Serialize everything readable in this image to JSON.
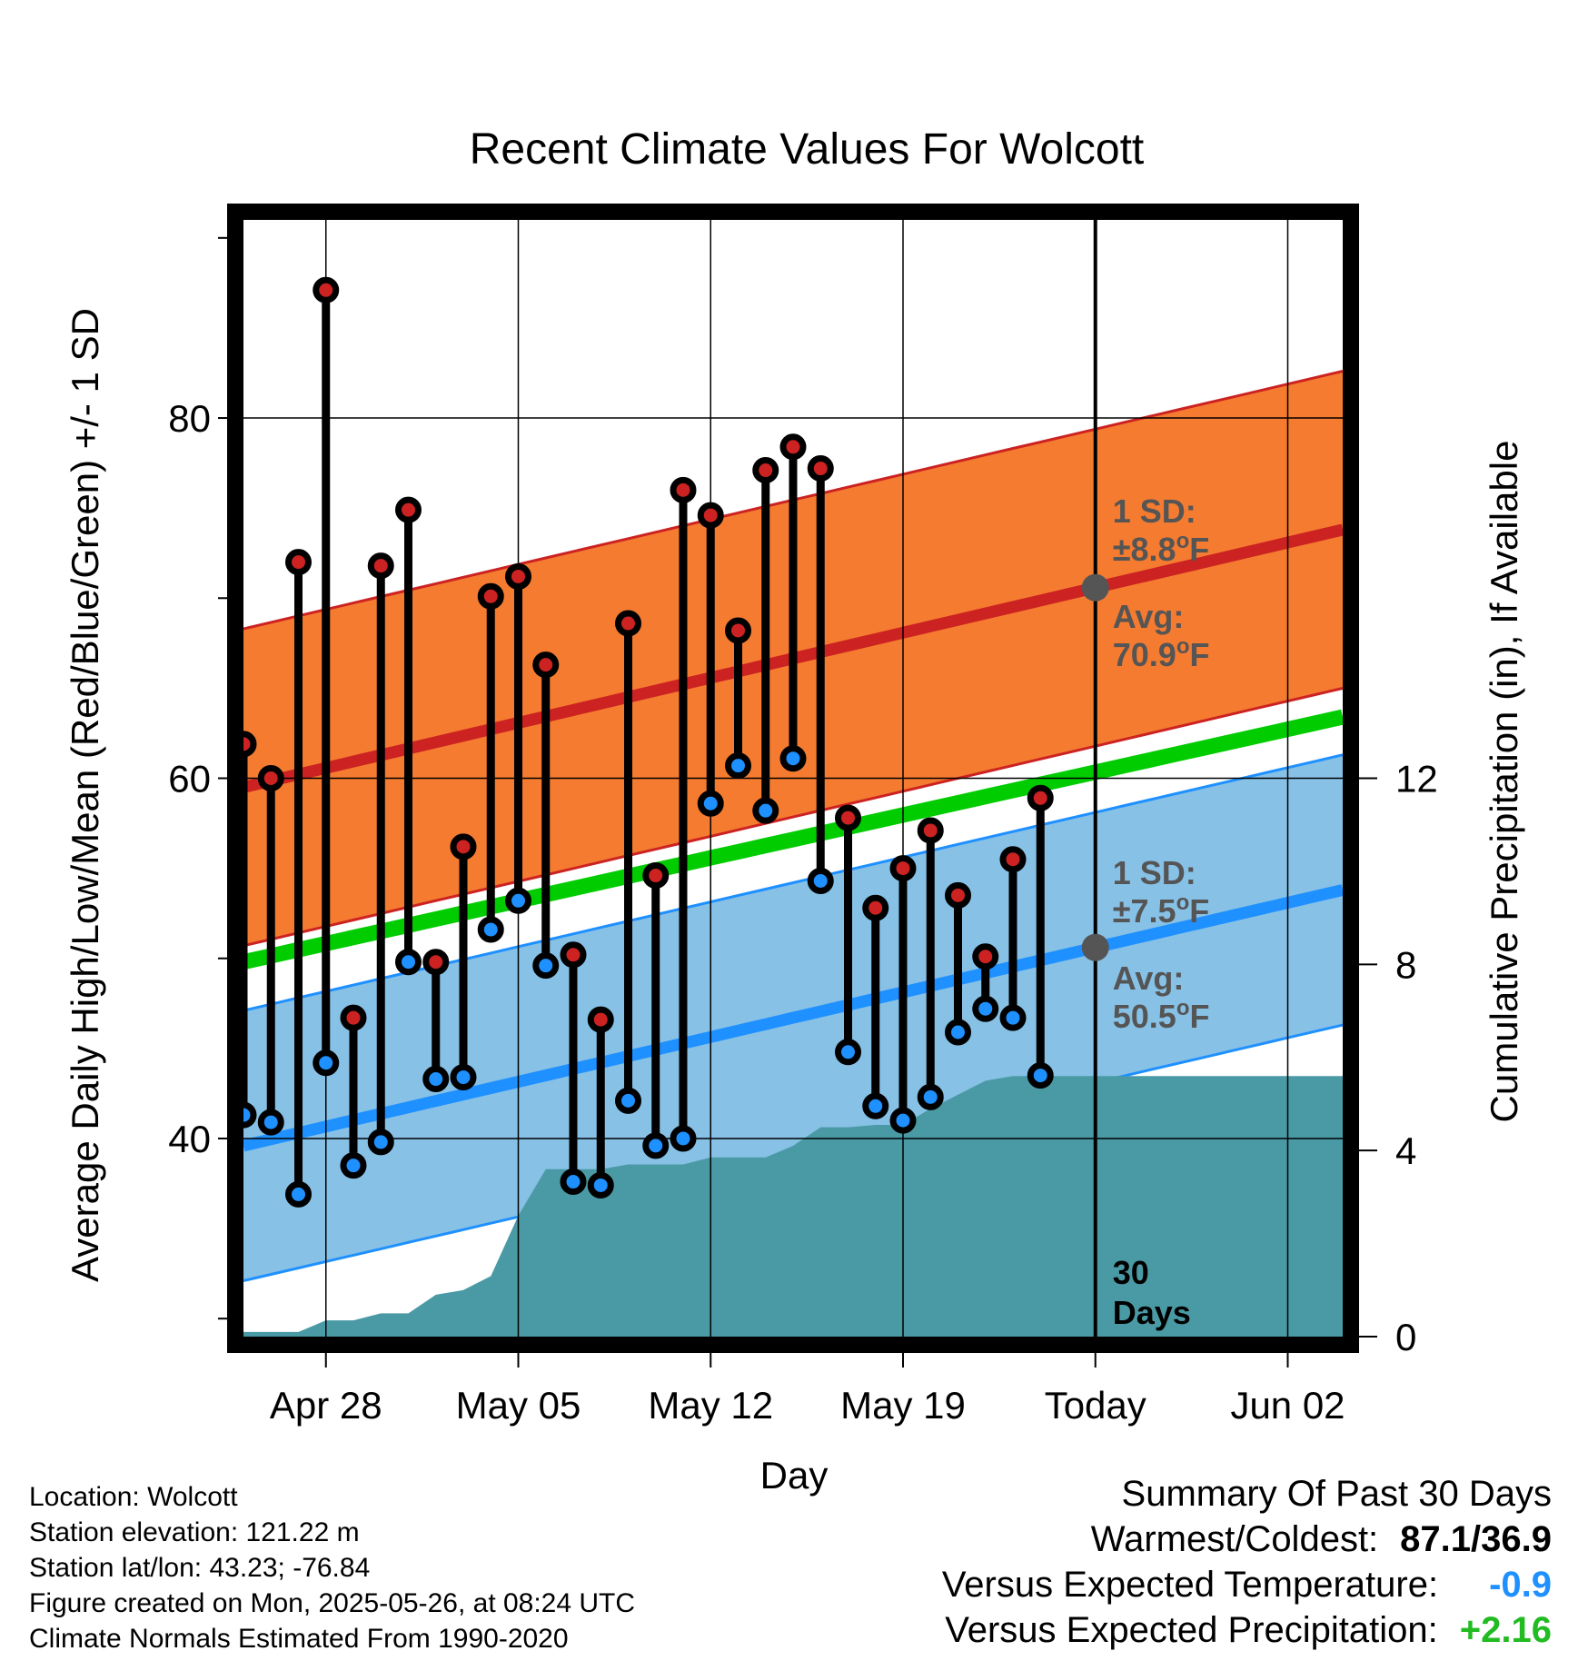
{
  "chart_data": {
    "type": "line",
    "title": "Recent Climate Values For Wolcott",
    "xlabel": "Day",
    "ylabel": "Average Daily High/Low/Mean (Red/Blue/Green) +/- 1 SD",
    "y2label": "Cumulative Precipitation (in), If Available",
    "x_start": "2025-04-25",
    "today": "2025-05-26",
    "x_end": "2025-06-04",
    "x_ticks": [
      {
        "date": "2025-04-28",
        "label": "Apr 28"
      },
      {
        "date": "2025-05-05",
        "label": "May 05"
      },
      {
        "date": "2025-05-12",
        "label": "May 12"
      },
      {
        "date": "2025-05-19",
        "label": "May 19"
      },
      {
        "date": "2025-05-26",
        "label": "Today"
      },
      {
        "date": "2025-06-02",
        "label": "Jun 02"
      }
    ],
    "ylim": [
      29,
      91
    ],
    "y_ticks": [
      40,
      60,
      80
    ],
    "y2lim": [
      0,
      24
    ],
    "y2_ticks": [
      0,
      4,
      8,
      12
    ],
    "grid": true,
    "normals": {
      "high_avg": {
        "start": 59.5,
        "end": 73.8
      },
      "high_sd": 8.8,
      "mean_avg": {
        "start": 49.8,
        "end": 63.4
      },
      "low_avg": {
        "start": 39.6,
        "end": 53.8
      },
      "low_sd": 7.5
    },
    "series": [
      {
        "name": "High",
        "color": "#cc2222",
        "dates": [
          "2025-04-25",
          "2025-04-26",
          "2025-04-27",
          "2025-04-28",
          "2025-04-29",
          "2025-04-30",
          "2025-05-01",
          "2025-05-02",
          "2025-05-03",
          "2025-05-04",
          "2025-05-05",
          "2025-05-06",
          "2025-05-07",
          "2025-05-08",
          "2025-05-09",
          "2025-05-10",
          "2025-05-11",
          "2025-05-12",
          "2025-05-13",
          "2025-05-14",
          "2025-05-15",
          "2025-05-16",
          "2025-05-17",
          "2025-05-18",
          "2025-05-19",
          "2025-05-20",
          "2025-05-21",
          "2025-05-22",
          "2025-05-23",
          "2025-05-24",
          "2025-05-25"
        ],
        "values": [
          61.9,
          60.0,
          72.0,
          87.1,
          46.7,
          71.8,
          74.9,
          49.8,
          56.2,
          70.1,
          71.2,
          66.3,
          50.2,
          46.6,
          68.6,
          54.6,
          76.0,
          74.6,
          68.2,
          77.1,
          78.4,
          77.2,
          57.8,
          52.8,
          55.0,
          57.1,
          53.5,
          50.1,
          55.5,
          58.9,
          null
        ]
      },
      {
        "name": "Low",
        "color": "#1e90ff",
        "dates": [
          "2025-04-25",
          "2025-04-26",
          "2025-04-27",
          "2025-04-28",
          "2025-04-29",
          "2025-04-30",
          "2025-05-01",
          "2025-05-02",
          "2025-05-03",
          "2025-05-04",
          "2025-05-05",
          "2025-05-06",
          "2025-05-07",
          "2025-05-08",
          "2025-05-09",
          "2025-05-10",
          "2025-05-11",
          "2025-05-12",
          "2025-05-13",
          "2025-05-14",
          "2025-05-15",
          "2025-05-16",
          "2025-05-17",
          "2025-05-18",
          "2025-05-19",
          "2025-05-20",
          "2025-05-21",
          "2025-05-22",
          "2025-05-23",
          "2025-05-24",
          "2025-05-25"
        ],
        "values": [
          41.3,
          40.9,
          36.9,
          44.2,
          38.5,
          39.8,
          49.8,
          43.3,
          43.4,
          51.6,
          53.2,
          49.6,
          37.6,
          37.4,
          42.1,
          39.6,
          40.0,
          58.6,
          60.7,
          58.2,
          61.1,
          54.3,
          44.8,
          41.8,
          41.0,
          42.3,
          45.9,
          47.2,
          46.7,
          43.5,
          null
        ]
      },
      {
        "name": "Cumulative Precipitation",
        "dates": [
          "2025-04-25",
          "2025-04-26",
          "2025-04-27",
          "2025-04-28",
          "2025-04-29",
          "2025-04-30",
          "2025-05-01",
          "2025-05-02",
          "2025-05-03",
          "2025-05-04",
          "2025-05-05",
          "2025-05-06",
          "2025-05-07",
          "2025-05-08",
          "2025-05-09",
          "2025-05-10",
          "2025-05-11",
          "2025-05-12",
          "2025-05-13",
          "2025-05-14",
          "2025-05-15",
          "2025-05-16",
          "2025-05-17",
          "2025-05-18",
          "2025-05-19",
          "2025-05-20",
          "2025-05-21",
          "2025-05-22",
          "2025-05-23",
          "2025-05-24",
          "2025-05-25",
          "2025-05-26"
        ],
        "values": [
          0.1,
          0.1,
          0.1,
          0.35,
          0.35,
          0.5,
          0.5,
          0.9,
          1.0,
          1.3,
          2.6,
          3.6,
          3.6,
          3.6,
          3.7,
          3.7,
          3.7,
          3.85,
          3.85,
          3.85,
          4.1,
          4.5,
          4.5,
          4.55,
          4.55,
          4.9,
          5.2,
          5.5,
          5.6,
          5.6,
          5.6,
          5.6
        ]
      }
    ],
    "annotations": {
      "high_sd_line1": "1 SD:",
      "high_sd_line2": "±8.8",
      "high_avg_line1": "Avg:",
      "high_avg_line2": "70.9",
      "low_sd_line1": "1 SD:",
      "low_sd_line2": "±7.5",
      "low_avg_line1": "Avg:",
      "low_avg_line2": "50.5",
      "degree_sup": "o",
      "unit_f": "F",
      "days_line1": "30",
      "days_line2": "Days"
    },
    "colors": {
      "high_band": "#f47b30",
      "high_line": "#cc2222",
      "low_band": "#87c1e6",
      "low_line": "#1e90ff",
      "mean_line": "#00cc00",
      "precip": "#4a9aa5",
      "today_marker": "#555555"
    }
  },
  "meta": {
    "location": "Location: Wolcott",
    "elevation": "Station elevation: 121.22 m",
    "latlon": "Station lat/lon: 43.23; -76.84",
    "created": "Figure created on Mon, 2025-05-26, at 08:24 UTC",
    "normals": "Climate Normals Estimated From 1990-2020"
  },
  "summary": {
    "heading": "Summary Of Past 30 Days",
    "warmest_label": "Warmest/Coldest:",
    "warmest_value": "87.1/36.9",
    "temp_label": "Versus Expected Temperature:",
    "temp_value": "-0.9",
    "temp_color": "#1e90ff",
    "precip_label": "Versus Expected Precipitation:",
    "precip_value": "+2.16",
    "precip_color": "#22bb22"
  }
}
